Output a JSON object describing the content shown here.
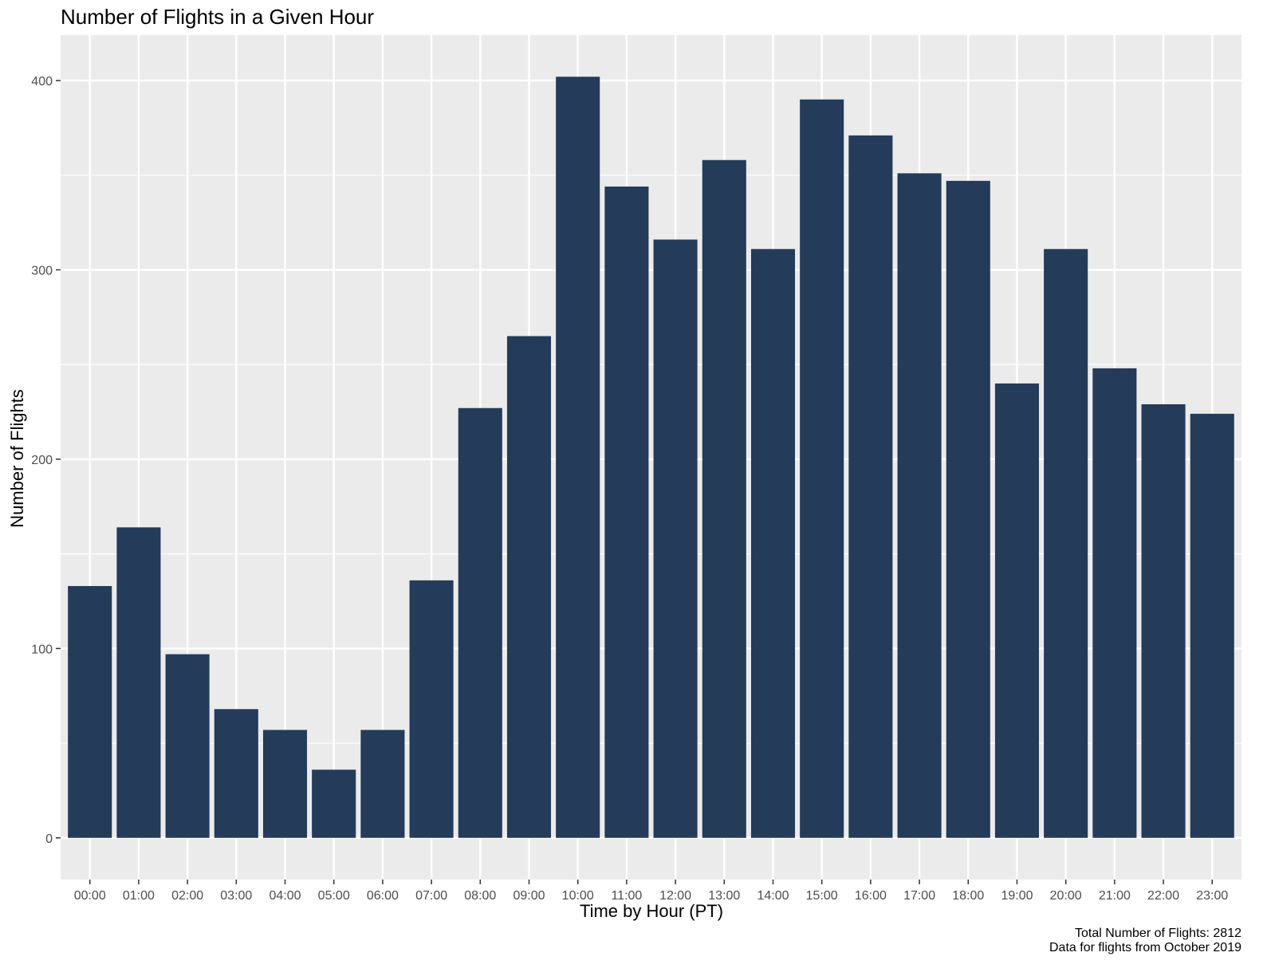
{
  "chart_data": {
    "type": "bar",
    "title": "Number of Flights in a Given Hour",
    "xlabel": "Time by Hour (PT)",
    "ylabel": "Number of Flights",
    "categories": [
      "00:00",
      "01:00",
      "02:00",
      "03:00",
      "04:00",
      "05:00",
      "06:00",
      "07:00",
      "08:00",
      "09:00",
      "10:00",
      "11:00",
      "12:00",
      "13:00",
      "14:00",
      "15:00",
      "16:00",
      "17:00",
      "18:00",
      "19:00",
      "20:00",
      "21:00",
      "22:00",
      "23:00"
    ],
    "values": [
      133,
      164,
      97,
      68,
      57,
      36,
      57,
      136,
      227,
      265,
      402,
      344,
      316,
      358,
      311,
      390,
      371,
      351,
      347,
      240,
      311,
      248,
      229,
      224
    ],
    "ylim": [
      -22,
      424
    ],
    "yticks": [
      0,
      100,
      200,
      300,
      400
    ],
    "grid": true,
    "bar_color": "#243b5a",
    "panel_color": "#ebebeb",
    "caption": [
      "Total Number of Flights: 2812",
      "Data for flights from October 2019"
    ]
  }
}
